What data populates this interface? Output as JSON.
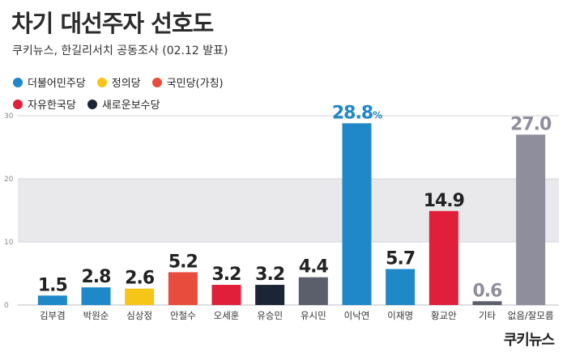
{
  "header": {
    "title": "차기 대선주자 선호도",
    "subtitle": "쿠키뉴스, 한길리서치 공동조사 (02.12 발표)"
  },
  "legend": [
    {
      "label": "더불어민주당",
      "color": "#1e88c8"
    },
    {
      "label": "정의당",
      "color": "#f5c518"
    },
    {
      "label": "국민당(가칭)",
      "color": "#e84c3d"
    },
    {
      "label": "자유한국당",
      "color": "#e0203a"
    },
    {
      "label": "새로운보수당",
      "color": "#1b2535"
    }
  ],
  "brand": "쿠키뉴스",
  "chart_data": {
    "type": "bar",
    "categories": [
      "김부겸",
      "박원순",
      "심상정",
      "안철수",
      "오세훈",
      "유승민",
      "유시민",
      "이낙연",
      "이재명",
      "황교안",
      "기타",
      "없음/잘모름"
    ],
    "values": [
      1.5,
      2.8,
      2.6,
      5.2,
      3.2,
      3.2,
      4.4,
      28.8,
      5.7,
      14.9,
      0.6,
      27.0
    ],
    "value_labels": [
      "1.5",
      "2.8",
      "2.6",
      "5.2",
      "3.2",
      "3.2",
      "4.4",
      "28.8",
      "5.7",
      "14.9",
      "0.6",
      "27.0"
    ],
    "highlight_unit": "%",
    "colors": [
      "#1e88c8",
      "#1e88c8",
      "#f5c518",
      "#e84c3d",
      "#e0203a",
      "#1b2535",
      "#5a5f6b",
      "#1e88c8",
      "#1e88c8",
      "#e0203a",
      "#5a5f6b",
      "#8f8e9c"
    ],
    "label_colors": [
      "#222222",
      "#222222",
      "#222222",
      "#222222",
      "#222222",
      "#222222",
      "#222222",
      "#1e88c8",
      "#222222",
      "#222222",
      "#8f8e9c",
      "#8f8e9c"
    ],
    "ylim": [
      0,
      30
    ],
    "yticks": [
      0,
      10,
      20,
      30
    ],
    "band_color": "#e9e9ec",
    "grid": true
  }
}
